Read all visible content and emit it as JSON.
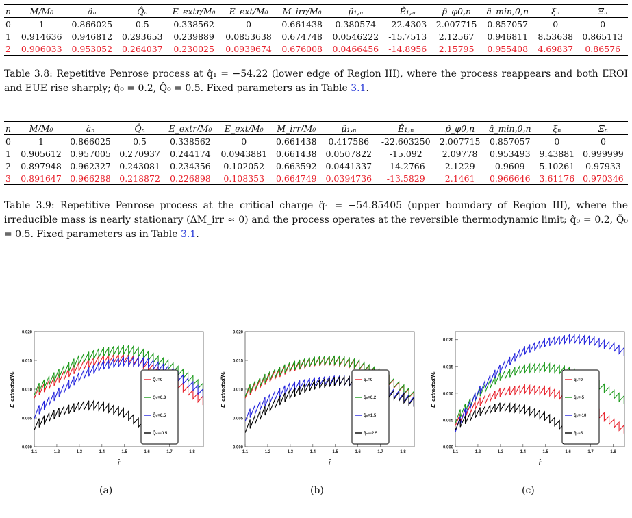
{
  "columns": [
    "n",
    "M/M₀",
    "âₙ",
    "Q̂ₙ",
    "E_extr/M₀",
    "E_ext/M₀",
    "M_irr/M₀",
    "μ̃₁,ₙ",
    "Ê₁,ₙ",
    "p̂_φ0,n",
    "â_min,0,n",
    "ξₙ",
    "Ξₙ"
  ],
  "table1": {
    "rows": [
      [
        "0",
        "1",
        "0.866025",
        "0.5",
        "0.338562",
        "0",
        "0.661438",
        "0.380574",
        "-22.4303",
        "2.007715",
        "0.857057",
        "0",
        "0"
      ],
      [
        "1",
        "0.914636",
        "0.946812",
        "0.293653",
        "0.239889",
        "0.0853638",
        "0.674748",
        "0.0546222",
        "-15.7513",
        "2.12567",
        "0.946811",
        "8.53638",
        "0.865113"
      ],
      [
        "2",
        "0.906033",
        "0.953052",
        "0.264037",
        "0.230025",
        "0.0939674",
        "0.676008",
        "0.0466456",
        "-14.8956",
        "2.15795",
        "0.955408",
        "4.69837",
        "0.86576"
      ]
    ],
    "caption": "Table 3.8: Repetitive Penrose process at q̂₁ = −54.22 (lower edge of Region III), where the process reappears and both EROI and EUE rise sharply; q̂₀ = 0.2, Q̂₀ = 0.5. Fixed parameters as in Table ",
    "caption_ref": "3.1",
    "caption_end": "."
  },
  "table2": {
    "rows": [
      [
        "0",
        "1",
        "0.866025",
        "0.5",
        "0.338562",
        "0",
        "0.661438",
        "0.417586",
        "-22.603250",
        "2.007715",
        "0.857057",
        "0",
        "0"
      ],
      [
        "1",
        "0.905612",
        "0.957005",
        "0.270937",
        "0.244174",
        "0.0943881",
        "0.661438",
        "0.0507822",
        "-15.092",
        "2.09778",
        "0.953493",
        "9.43881",
        "0.999999"
      ],
      [
        "2",
        "0.897948",
        "0.962327",
        "0.243081",
        "0.234356",
        "0.102052",
        "0.663592",
        "0.0441337",
        "-14.2766",
        "2.1229",
        "0.9609",
        "5.10261",
        "0.97933"
      ],
      [
        "3",
        "0.891647",
        "0.966288",
        "0.218872",
        "0.226898",
        "0.108353",
        "0.664749",
        "0.0394736",
        "-13.5829",
        "2.1461",
        "0.966646",
        "3.61176",
        "0.970346"
      ]
    ],
    "caption": "Table 3.9: Repetitive Penrose process at the critical charge q̂₁ = −54.85405 (upper boundary of Region III), where the irreducible mass is nearly stationary (ΔM_irr ≈ 0) and the process operates at the reversible thermodynamic limit; q̂₀ = 0.2, Q̂₀ = 0.5. Fixed parameters as in Table ",
    "caption_ref": "3.1",
    "caption_end": "."
  },
  "chart_data": [
    {
      "type": "line",
      "ylabel": "E_extracted/M₀",
      "xlabel": "r̂",
      "xlim": [
        1.1,
        1.85
      ],
      "ylim": [
        0.0,
        0.02
      ],
      "xticks": [
        "1.1",
        "1.2",
        "1.3",
        "1.4",
        "1.5",
        "1.6",
        "1.7",
        "1.8"
      ],
      "yticks": [
        "0.000",
        "0.005",
        "0.010",
        "0.015",
        "0.020"
      ],
      "legend": "center-right",
      "series": [
        {
          "name": "Q̂₀=0",
          "color": "#e8202a",
          "x": [
            1.1,
            1.2,
            1.3,
            1.4,
            1.5,
            1.55,
            1.6,
            1.7,
            1.8,
            1.85
          ],
          "y": [
            0.0095,
            0.012,
            0.0143,
            0.0155,
            0.0157,
            0.0153,
            0.0145,
            0.0123,
            0.0095,
            0.0083
          ]
        },
        {
          "name": "Q̂₀=0.3",
          "color": "#1a9a1a",
          "x": [
            1.1,
            1.2,
            1.3,
            1.4,
            1.5,
            1.55,
            1.6,
            1.7,
            1.8,
            1.85
          ],
          "y": [
            0.01,
            0.0128,
            0.0155,
            0.0168,
            0.0172,
            0.017,
            0.0162,
            0.0145,
            0.012,
            0.0105
          ]
        },
        {
          "name": "Q̂₀=0.5",
          "color": "#2222dd",
          "x": [
            1.1,
            1.2,
            1.3,
            1.4,
            1.5,
            1.6,
            1.7,
            1.8,
            1.85
          ],
          "y": [
            0.006,
            0.0095,
            0.0125,
            0.0145,
            0.0152,
            0.015,
            0.0135,
            0.011,
            0.0095
          ]
        },
        {
          "name": "Q̂₀=-0.5",
          "color": "#000000",
          "x": [
            1.1,
            1.2,
            1.3,
            1.35,
            1.4,
            1.5,
            1.6,
            1.65
          ],
          "y": [
            0.004,
            0.0062,
            0.0074,
            0.0076,
            0.0074,
            0.0062,
            0.0035,
            0.002
          ]
        }
      ]
    },
    {
      "type": "line",
      "ylabel": "E_extracted/M₀",
      "xlabel": "r̂",
      "xlim": [
        1.1,
        1.85
      ],
      "ylim": [
        0.0,
        0.02
      ],
      "xticks": [
        "1.1",
        "1.2",
        "1.3",
        "1.4",
        "1.5",
        "1.6",
        "1.7",
        "1.8"
      ],
      "yticks": [
        "0.000",
        "0.005",
        "0.010",
        "0.015",
        "0.020"
      ],
      "legend": "center-right",
      "series": [
        {
          "name": "q̂₀=0",
          "color": "#e8202a",
          "x": [
            1.1,
            1.2,
            1.3,
            1.4,
            1.5,
            1.6,
            1.7,
            1.8,
            1.85
          ],
          "y": [
            0.0095,
            0.0122,
            0.0141,
            0.0151,
            0.0153,
            0.0146,
            0.0128,
            0.0103,
            0.009
          ]
        },
        {
          "name": "q̂₀=0.2",
          "color": "#1a9a1a",
          "x": [
            1.1,
            1.2,
            1.3,
            1.4,
            1.5,
            1.6,
            1.7,
            1.8,
            1.85
          ],
          "y": [
            0.0098,
            0.0125,
            0.0143,
            0.0152,
            0.0154,
            0.0147,
            0.0129,
            0.0104,
            0.0091
          ]
        },
        {
          "name": "q̂₀=1.5",
          "color": "#2222dd",
          "x": [
            1.1,
            1.2,
            1.3,
            1.4,
            1.5,
            1.6,
            1.7,
            1.8,
            1.85
          ],
          "y": [
            0.0055,
            0.0085,
            0.0107,
            0.0116,
            0.0119,
            0.0115,
            0.0105,
            0.009,
            0.0082
          ]
        },
        {
          "name": "q̂₀=-2.5",
          "color": "#000000",
          "x": [
            1.1,
            1.2,
            1.3,
            1.4,
            1.5,
            1.55,
            1.6,
            1.7,
            1.8,
            1.85
          ],
          "y": [
            0.0035,
            0.007,
            0.0095,
            0.011,
            0.0117,
            0.0118,
            0.0114,
            0.0102,
            0.0088,
            0.008
          ]
        }
      ]
    },
    {
      "type": "line",
      "ylabel": "E_extracted/M₀",
      "xlabel": "r̂",
      "xlim": [
        1.1,
        1.85
      ],
      "ylim": [
        0.0,
        0.0215
      ],
      "xticks": [
        "1.1",
        "1.2",
        "1.3",
        "1.4",
        "1.5",
        "1.6",
        "1.7",
        "1.8"
      ],
      "yticks": [
        "0.000",
        "0.005",
        "0.010",
        "0.015",
        "0.020"
      ],
      "legend": "center-right",
      "series": [
        {
          "name": "q̂₁=0",
          "color": "#e8202a",
          "x": [
            1.1,
            1.2,
            1.3,
            1.4,
            1.5,
            1.6,
            1.7,
            1.8,
            1.85
          ],
          "y": [
            0.005,
            0.0085,
            0.0105,
            0.0111,
            0.0108,
            0.0095,
            0.0075,
            0.0048,
            0.0035
          ]
        },
        {
          "name": "q̂₁=-5",
          "color": "#1a9a1a",
          "x": [
            1.1,
            1.2,
            1.3,
            1.4,
            1.5,
            1.6,
            1.7,
            1.8,
            1.85
          ],
          "y": [
            0.0055,
            0.0102,
            0.0135,
            0.0149,
            0.0152,
            0.0145,
            0.0128,
            0.0102,
            0.009
          ]
        },
        {
          "name": "q̂₁=-10",
          "color": "#2222dd",
          "x": [
            1.1,
            1.2,
            1.3,
            1.4,
            1.5,
            1.6,
            1.7,
            1.8,
            1.85
          ],
          "y": [
            0.0038,
            0.0105,
            0.015,
            0.0182,
            0.0198,
            0.0205,
            0.0202,
            0.019,
            0.018
          ]
        },
        {
          "name": "q̂₁=5",
          "color": "#000000",
          "x": [
            1.1,
            1.2,
            1.3,
            1.4,
            1.5,
            1.6,
            1.65
          ],
          "y": [
            0.0042,
            0.0068,
            0.0078,
            0.0074,
            0.006,
            0.0035,
            0.0018
          ]
        }
      ]
    }
  ],
  "sublabels": [
    "(a)",
    "(b)",
    "(c)"
  ]
}
